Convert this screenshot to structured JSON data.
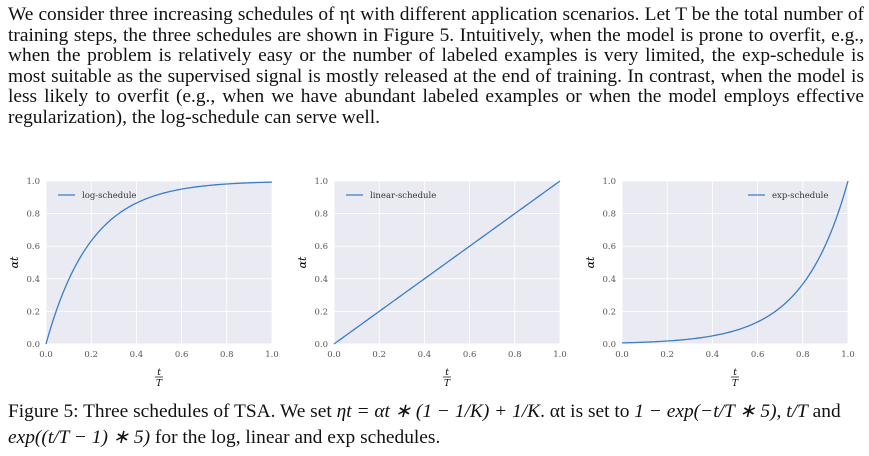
{
  "paragraph": "We consider three increasing schedules of ηt with different application scenarios. Let T be the total number of training steps, the three schedules are shown in Figure 5. Intuitively, when the model is prone to overfit, e.g., when the problem is relatively easy or the number of labeled examples is very limited, the exp-schedule is most suitable as the supervised signal is mostly released at the end of training. In contrast, when the model is less likely to overfit (e.g., when we have abundant labeled examples or when the model employs effective regularization), the log-schedule can serve well.",
  "caption": {
    "figure_label": "Figure 5:",
    "text_1": "Three schedules of TSA. We set",
    "eta_formula": "ηt = αt ∗ (1 − 1/K) + 1/K",
    "text_2": ". αt is set to",
    "log_formula": "1 − exp(−t/T ∗ 5)",
    "linear_formula": "t/T",
    "text_3": "and",
    "exp_formula": "exp((t/T − 1) ∗ 5)",
    "text_4": "for the log, linear and exp schedules."
  },
  "colors": {
    "line": "#3a7dc9",
    "plot_bg": "#e9eaf2",
    "grid": "#ffffff"
  },
  "chart_data": [
    {
      "type": "line",
      "legend": "log-schedule",
      "legend_position": "top-left",
      "xlabel": "t/T",
      "ylabel": "αt",
      "xlim": [
        0,
        1
      ],
      "ylim": [
        0,
        1
      ],
      "xticks": [
        "0.0",
        "0.2",
        "0.4",
        "0.6",
        "0.8",
        "1.0"
      ],
      "yticks": [
        "0.0",
        "0.2",
        "0.4",
        "0.6",
        "0.8",
        "1.0"
      ],
      "grid": true,
      "x": [
        0.0,
        0.1,
        0.2,
        0.3,
        0.4,
        0.5,
        0.6,
        0.7,
        0.8,
        0.9,
        1.0
      ],
      "y": [
        0.0,
        0.39,
        0.63,
        0.78,
        0.86,
        0.92,
        0.95,
        0.97,
        0.98,
        0.99,
        0.99
      ]
    },
    {
      "type": "line",
      "legend": "linear-schedule",
      "legend_position": "top-left",
      "xlabel": "t/T",
      "ylabel": "αt",
      "xlim": [
        0,
        1
      ],
      "ylim": [
        0,
        1
      ],
      "xticks": [
        "0.0",
        "0.2",
        "0.4",
        "0.6",
        "0.8",
        "1.0"
      ],
      "yticks": [
        "0.0",
        "0.2",
        "0.4",
        "0.6",
        "0.8",
        "1.0"
      ],
      "grid": true,
      "x": [
        0.0,
        0.1,
        0.2,
        0.3,
        0.4,
        0.5,
        0.6,
        0.7,
        0.8,
        0.9,
        1.0
      ],
      "y": [
        0.0,
        0.1,
        0.2,
        0.3,
        0.4,
        0.5,
        0.6,
        0.7,
        0.8,
        0.9,
        1.0
      ]
    },
    {
      "type": "line",
      "legend": "exp-schedule",
      "legend_position": "top-right",
      "xlabel": "t/T",
      "ylabel": "αt",
      "xlim": [
        0,
        1
      ],
      "ylim": [
        0,
        1
      ],
      "xticks": [
        "0.0",
        "0.2",
        "0.4",
        "0.6",
        "0.8",
        "1.0"
      ],
      "yticks": [
        "0.0",
        "0.2",
        "0.4",
        "0.6",
        "0.8",
        "1.0"
      ],
      "grid": true,
      "x": [
        0.0,
        0.1,
        0.2,
        0.3,
        0.4,
        0.5,
        0.6,
        0.7,
        0.8,
        0.9,
        1.0
      ],
      "y": [
        0.007,
        0.011,
        0.018,
        0.03,
        0.05,
        0.082,
        0.135,
        0.223,
        0.368,
        0.607,
        1.0
      ]
    }
  ]
}
